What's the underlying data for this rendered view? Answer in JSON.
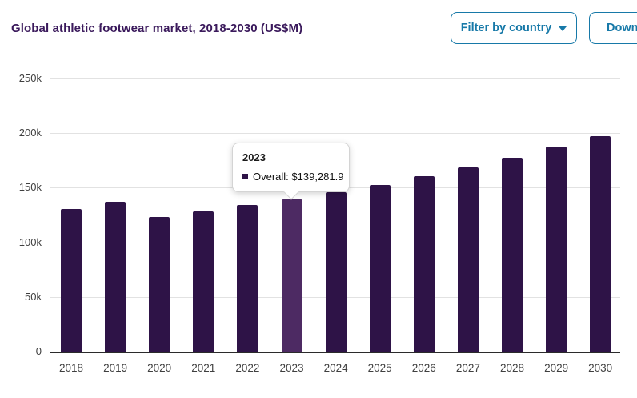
{
  "header": {
    "title": "Global athletic footwear market, 2018-2030 (US$M)",
    "filter_button_label": "Filter by country",
    "download_button_label": "Download"
  },
  "tooltip": {
    "title": "2023",
    "series_line": "Overall: $139,281.9"
  },
  "chart_data": {
    "type": "bar",
    "title": "Global athletic footwear market, 2018-2030 (US$M)",
    "unit": "US$M",
    "categories": [
      "2018",
      "2019",
      "2020",
      "2021",
      "2022",
      "2023",
      "2024",
      "2025",
      "2026",
      "2027",
      "2028",
      "2029",
      "2030"
    ],
    "values": [
      130500,
      137300,
      122900,
      128300,
      134400,
      139281.9,
      146100,
      152300,
      160300,
      168600,
      177100,
      187700,
      196900
    ],
    "series_name": "Overall",
    "highlight_index": 5,
    "highlighted_value_exact": 139281.9,
    "ylim": [
      0,
      250000
    ],
    "yticks": [
      {
        "label": "0",
        "value": 0
      },
      {
        "label": "50k",
        "value": 50000
      },
      {
        "label": "100k",
        "value": 100000
      },
      {
        "label": "150k",
        "value": 150000
      },
      {
        "label": "200k",
        "value": 200000
      },
      {
        "label": "250k",
        "value": 250000
      }
    ],
    "grid": true,
    "legend": "none",
    "xlabel": "",
    "ylabel": "",
    "colors": {
      "bar": "#2e1347",
      "bar_highlight": "#4d2a63",
      "gridline": "#e2e2e2",
      "axis_line": "#2b2b2b",
      "axis_text": "#3f3f3f",
      "title_text": "#3b1a5c",
      "button_accent": "#1779a8"
    }
  }
}
